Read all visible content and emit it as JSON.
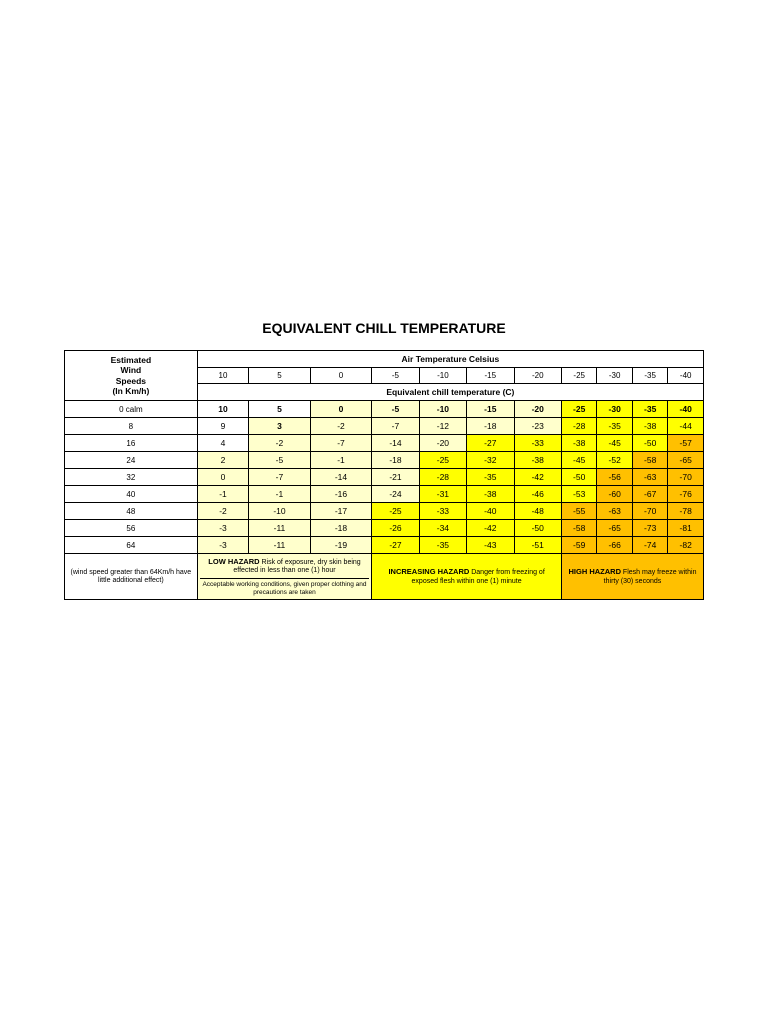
{
  "title": "EQUIVALENT CHILL TEMPERATURE",
  "colors": {
    "none": "#ffffff",
    "low": "#ffffcc",
    "med": "#ffff00",
    "high": "#ffc000",
    "border": "#000000"
  },
  "headers": {
    "wind": "Estimated Wind Speeds (In Km/h)",
    "air": "Air Temperature Celsius",
    "equiv": "Equivalent chill temperature (C)"
  },
  "temps": [
    "10",
    "5",
    "0",
    "-5",
    "-10",
    "-15",
    "-20",
    "-25",
    "-30",
    "-35",
    "-40"
  ],
  "speeds": [
    "0 calm",
    "8",
    "16",
    "24",
    "32",
    "40",
    "48",
    "56",
    "64"
  ],
  "data": [
    [
      "10",
      "5",
      "0",
      "-5",
      "-10",
      "-15",
      "-20",
      "-25",
      "-30",
      "-35",
      "-40"
    ],
    [
      "9",
      "3",
      "-2",
      "-7",
      "-12",
      "-18",
      "-23",
      "-28",
      "-35",
      "-38",
      "-44"
    ],
    [
      "4",
      "-2",
      "-7",
      "-14",
      "-20",
      "-27",
      "-33",
      "-38",
      "-45",
      "-50",
      "-57"
    ],
    [
      "2",
      "-5",
      "-1",
      "-18",
      "-25",
      "-32",
      "-38",
      "-45",
      "-52",
      "-58",
      "-65"
    ],
    [
      "0",
      "-7",
      "-14",
      "-21",
      "-28",
      "-35",
      "-42",
      "-50",
      "-56",
      "-63",
      "-70"
    ],
    [
      "-1",
      "-1",
      "-16",
      "-24",
      "-31",
      "-38",
      "-46",
      "-53",
      "-60",
      "-67",
      "-76"
    ],
    [
      "-2",
      "-10",
      "-17",
      "-25",
      "-33",
      "-40",
      "-48",
      "-55",
      "-63",
      "-70",
      "-78"
    ],
    [
      "-3",
      "-11",
      "-18",
      "-26",
      "-34",
      "-42",
      "-50",
      "-58",
      "-65",
      "-73",
      "-81"
    ],
    [
      "-3",
      "-11",
      "-19",
      "-27",
      "-35",
      "-43",
      "-51",
      "-59",
      "-66",
      "-74",
      "-82"
    ]
  ],
  "zones": [
    [
      "none",
      "none",
      "low",
      "low",
      "low",
      "low",
      "low",
      "med",
      "med",
      "med",
      "med"
    ],
    [
      "none",
      "low",
      "low",
      "low",
      "low",
      "low",
      "low",
      "med",
      "med",
      "med",
      "med"
    ],
    [
      "none",
      "low",
      "low",
      "low",
      "low",
      "med",
      "med",
      "med",
      "med",
      "med",
      "high"
    ],
    [
      "low",
      "low",
      "low",
      "low",
      "med",
      "med",
      "med",
      "med",
      "med",
      "high",
      "high"
    ],
    [
      "low",
      "low",
      "low",
      "low",
      "med",
      "med",
      "med",
      "med",
      "high",
      "high",
      "high"
    ],
    [
      "low",
      "low",
      "low",
      "low",
      "med",
      "med",
      "med",
      "med",
      "high",
      "high",
      "high"
    ],
    [
      "low",
      "low",
      "low",
      "med",
      "med",
      "med",
      "med",
      "high",
      "high",
      "high",
      "high"
    ],
    [
      "low",
      "low",
      "low",
      "med",
      "med",
      "med",
      "med",
      "high",
      "high",
      "high",
      "high"
    ],
    [
      "low",
      "low",
      "low",
      "med",
      "med",
      "med",
      "med",
      "high",
      "high",
      "high",
      "high"
    ]
  ],
  "bold": [
    [
      true,
      true,
      true,
      true,
      true,
      true,
      true,
      true,
      true,
      true,
      true
    ],
    [
      false,
      true,
      false,
      false,
      false,
      false,
      false,
      false,
      false,
      false,
      false
    ],
    [
      false,
      false,
      false,
      false,
      false,
      false,
      false,
      false,
      false,
      false,
      false
    ],
    [
      false,
      false,
      false,
      false,
      false,
      false,
      false,
      false,
      false,
      false,
      false
    ],
    [
      false,
      false,
      false,
      false,
      false,
      false,
      false,
      false,
      false,
      false,
      false
    ],
    [
      false,
      false,
      false,
      false,
      false,
      false,
      false,
      false,
      false,
      false,
      false
    ],
    [
      false,
      false,
      false,
      false,
      false,
      false,
      false,
      false,
      false,
      false,
      false
    ],
    [
      false,
      false,
      false,
      false,
      false,
      false,
      false,
      false,
      false,
      false,
      false
    ],
    [
      false,
      false,
      false,
      false,
      false,
      false,
      false,
      false,
      false,
      false,
      false
    ]
  ],
  "footer": {
    "note": "(wind speed greater than 64Km/h have little additional effect)",
    "low_title": "LOW HAZARD",
    "low_text": "Risk of exposure, dry skin being effected in less than one (1) hour",
    "low_sub": "Acceptable working conditions, given proper clothing and precautions are taken",
    "med_title": "INCREASING HAZARD",
    "med_text": "Danger from freezing of exposed flesh within one (1) minute",
    "high_title": "HIGH HAZARD",
    "high_text": "Flesh may freeze within thirty (30) seconds"
  },
  "footer_spans": {
    "low": 3,
    "med": 4,
    "high": 4
  }
}
